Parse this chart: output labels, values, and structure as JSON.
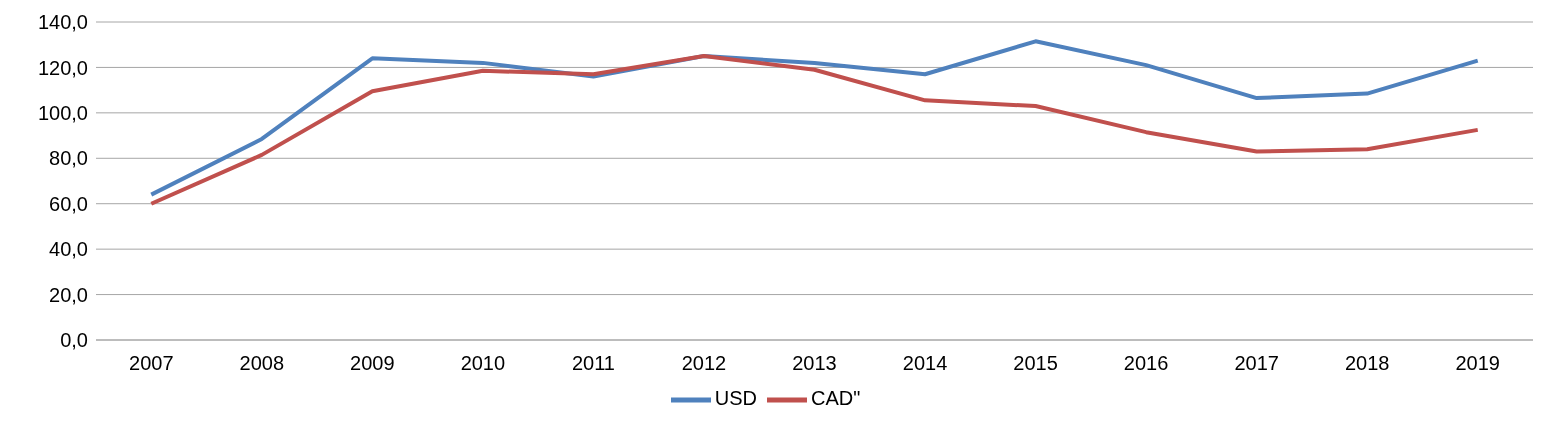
{
  "chart_data": {
    "type": "line",
    "categories": [
      "2007",
      "2008",
      "2009",
      "2010",
      "2011",
      "2012",
      "2013",
      "2014",
      "2015",
      "2016",
      "2017",
      "2018",
      "2019"
    ],
    "series": [
      {
        "name": "USD",
        "color": "#4f81bd",
        "values": [
          64,
          88.5,
          124,
          122,
          116,
          125,
          122,
          117,
          131.5,
          121,
          106.5,
          108.5,
          123
        ]
      },
      {
        "name": "CAD\"",
        "color": "#c0504d",
        "values": [
          60,
          81.5,
          109.5,
          118.5,
          117,
          125,
          119,
          105.5,
          103,
          91.5,
          83,
          84,
          92.5
        ]
      }
    ],
    "ylim": [
      0,
      140
    ],
    "yticks": [
      {
        "value": 0,
        "label": "0,0"
      },
      {
        "value": 20,
        "label": "20,0"
      },
      {
        "value": 40,
        "label": "40,0"
      },
      {
        "value": 60,
        "label": "60,0"
      },
      {
        "value": 80,
        "label": "80,0"
      },
      {
        "value": 100,
        "label": "100,0"
      },
      {
        "value": 120,
        "label": "120,0"
      },
      {
        "value": 140,
        "label": "140,0"
      }
    ],
    "grid": "y",
    "legend": "bottom",
    "marker": "none",
    "line_style": "solid"
  }
}
